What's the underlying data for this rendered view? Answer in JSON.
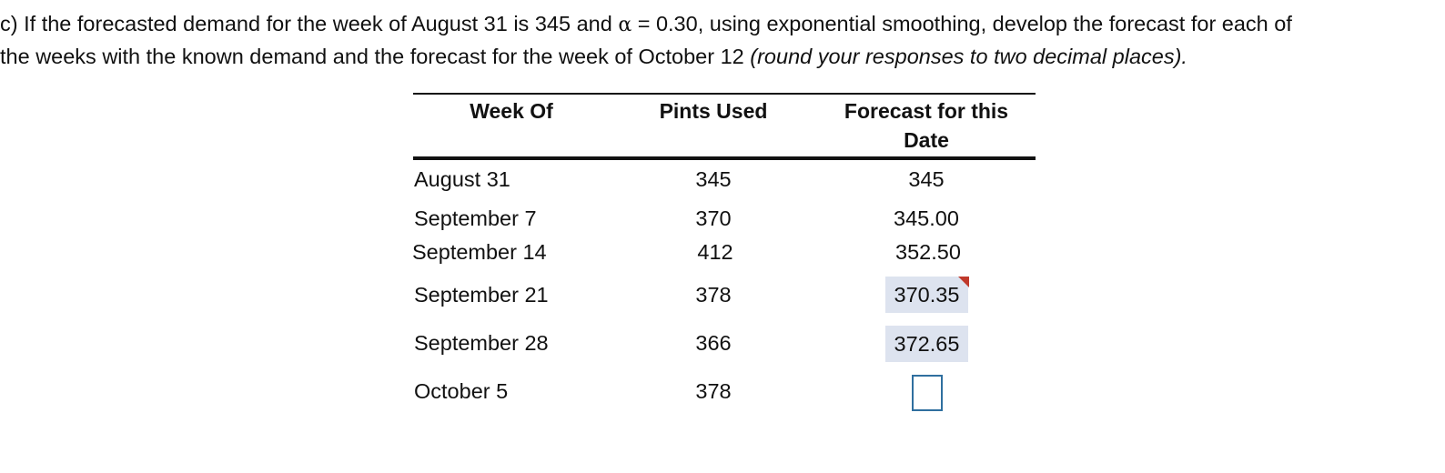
{
  "question": {
    "line1_part1": "c) If the forecasted demand for the week of August 31 is 345 and ",
    "alpha_symbol": "α",
    "line1_part2": " = 0.30, using exponential smoothing, develop the forecast for each of",
    "line2_plain": "the weeks with the known demand and the forecast for the week of October 12 ",
    "line2_italic": "(round your responses to two decimal places)."
  },
  "table": {
    "headers": {
      "week": "Week Of",
      "pints": "Pints Used",
      "forecast_line1": "Forecast for this",
      "forecast_line2": "Date"
    },
    "rows": [
      {
        "week": "August 31",
        "pints": "345",
        "forecast": "345"
      },
      {
        "week": "September 7",
        "pints": "370",
        "forecast": "345.00"
      },
      {
        "week": "September 14",
        "pints": "412",
        "forecast": "352.50"
      },
      {
        "week": "September 21",
        "pints": "378",
        "forecast": "370.35"
      },
      {
        "week": "September 28",
        "pints": "366",
        "forecast": "372.65"
      },
      {
        "week": "October 5",
        "pints": "378",
        "forecast": ""
      }
    ]
  },
  "colors": {
    "answer_fill": "#dde3ef",
    "error_flag": "#c0392b",
    "input_border": "#2f6f9f"
  }
}
